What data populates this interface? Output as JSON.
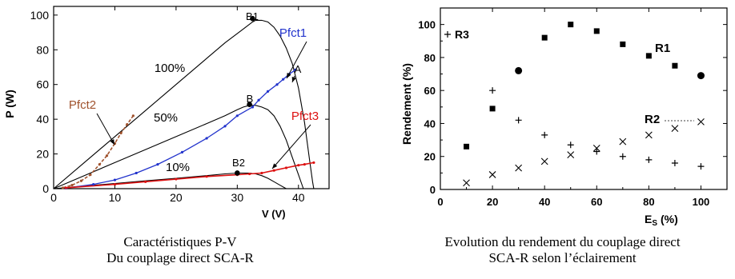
{
  "colors": {
    "black": "#000000",
    "pfct1": "#2233cc",
    "pfct2": "#a0522d",
    "pfct3": "#dd1111"
  },
  "left": {
    "caption_line1": "Caractéristiques P-V",
    "caption_line2": "Du couplage direct SCA-R"
  },
  "right": {
    "caption_line1": "Evolution du rendement du couplage direct",
    "caption_line2": "SCA-R selon l’éclairement"
  },
  "chart_data": [
    {
      "type": "line",
      "xlabel": "V (V)",
      "ylabel": "P (W)",
      "xlim": [
        0,
        45
      ],
      "ylim": [
        0,
        105
      ],
      "xticks": [
        "0",
        "10",
        "20",
        "30",
        "40"
      ],
      "yticks": [
        "0",
        "20",
        "40",
        "60",
        "80",
        "100"
      ],
      "series": [
        {
          "name": "100%",
          "points": [
            [
              0,
              0
            ],
            [
              5,
              15
            ],
            [
              10,
              30
            ],
            [
              15,
              45
            ],
            [
              20,
              60
            ],
            [
              25,
              75
            ],
            [
              28,
              84
            ],
            [
              31,
              92
            ],
            [
              32.5,
              96
            ],
            [
              33,
              97
            ],
            [
              34,
              97
            ],
            [
              35,
              96
            ],
            [
              36,
              93
            ],
            [
              37,
              88
            ],
            [
              38,
              81
            ],
            [
              39,
              72
            ],
            [
              40,
              58
            ],
            [
              41,
              38
            ],
            [
              41.8,
              17
            ],
            [
              42.3,
              4
            ],
            [
              42.5,
              0
            ]
          ]
        },
        {
          "name": "50%",
          "points": [
            [
              0,
              0
            ],
            [
              5,
              7.5
            ],
            [
              10,
              15
            ],
            [
              15,
              22.5
            ],
            [
              20,
              30
            ],
            [
              25,
              37.5
            ],
            [
              28,
              42
            ],
            [
              30,
              45.5
            ],
            [
              31,
              47
            ],
            [
              32,
              48
            ],
            [
              33,
              48
            ],
            [
              34,
              47
            ],
            [
              35,
              45.5
            ],
            [
              36,
              42
            ],
            [
              37,
              36
            ],
            [
              38,
              28
            ],
            [
              39,
              18
            ],
            [
              40,
              8
            ],
            [
              40.5,
              3
            ],
            [
              40.8,
              0
            ]
          ]
        },
        {
          "name": "10%",
          "points": [
            [
              0,
              0
            ],
            [
              5,
              1.5
            ],
            [
              10,
              3
            ],
            [
              15,
              4.5
            ],
            [
              20,
              6
            ],
            [
              25,
              7.5
            ],
            [
              28,
              8.5
            ],
            [
              30,
              9
            ],
            [
              32,
              9
            ],
            [
              33,
              8.5
            ],
            [
              34,
              7.5
            ],
            [
              35,
              6
            ],
            [
              36,
              4
            ],
            [
              37,
              2
            ],
            [
              38,
              0
            ]
          ]
        },
        {
          "name": "Pfct1",
          "points": [
            [
              2,
              0.3
            ],
            [
              6.5,
              2.5
            ],
            [
              10,
              5
            ],
            [
              13.5,
              9
            ],
            [
              17,
              14
            ],
            [
              21,
              21
            ],
            [
              25,
              29
            ],
            [
              28,
              36
            ],
            [
              30,
              42
            ],
            [
              32.5,
              47
            ],
            [
              33.5,
              51
            ],
            [
              35,
              56
            ],
            [
              36.5,
              60
            ],
            [
              37.5,
              63
            ],
            [
              38.5,
              66
            ],
            [
              39.5,
              68.5
            ]
          ]
        },
        {
          "name": "Pfct2",
          "points": [
            [
              1.5,
              0.5
            ],
            [
              3,
              2
            ],
            [
              4.5,
              4.5
            ],
            [
              6,
              8
            ],
            [
              7.5,
              14
            ],
            [
              8.7,
              19
            ],
            [
              10,
              26
            ],
            [
              11,
              32
            ],
            [
              12,
              37
            ],
            [
              13,
              42
            ]
          ]
        },
        {
          "name": "Pfct3",
          "points": [
            [
              2,
              0.5
            ],
            [
              10,
              2.5
            ],
            [
              15,
              4
            ],
            [
              20,
              5.5
            ],
            [
              25,
              7
            ],
            [
              30,
              8
            ],
            [
              32,
              8.5
            ],
            [
              34,
              9
            ],
            [
              36,
              10.5
            ],
            [
              38,
              12
            ],
            [
              40,
              13.5
            ],
            [
              41,
              14
            ],
            [
              42.5,
              15
            ]
          ]
        }
      ],
      "points_labeled": [
        {
          "label": "B1",
          "x": 32.5,
          "y": 98
        },
        {
          "label": "B",
          "x": 32,
          "y": 48.5
        },
        {
          "label": "B2",
          "x": 30,
          "y": 9
        },
        {
          "label": "A",
          "x": 38.5,
          "y": 66
        }
      ],
      "annotations": [
        "100%",
        "50%",
        "10%",
        "Pfct1",
        "Pfct2",
        "Pfct3",
        "B1",
        "B",
        "B2",
        "A"
      ]
    },
    {
      "type": "scatter",
      "xlabel": "E",
      "xlabel_sub": "S",
      "xlabel_unit": "(%)",
      "ylabel": "Rendement (%)",
      "xlim": [
        0,
        110
      ],
      "ylim": [
        0,
        110
      ],
      "xticks": [
        "0",
        "20",
        "40",
        "60",
        "80",
        "100"
      ],
      "yticks": [
        "0",
        "20",
        "40",
        "60",
        "80",
        "100"
      ],
      "series": [
        {
          "name": "R1",
          "marker": "square",
          "x": [
            10,
            20,
            30,
            40,
            50,
            60,
            70,
            80,
            90,
            100
          ],
          "y": [
            26,
            49,
            72,
            92,
            100,
            96,
            88,
            81,
            75,
            69
          ]
        },
        {
          "name": "R2",
          "marker": "x",
          "x": [
            10,
            20,
            30,
            40,
            50,
            60,
            70,
            80,
            90,
            100
          ],
          "y": [
            4,
            9,
            13,
            17,
            21,
            25,
            29,
            33,
            37,
            41
          ]
        },
        {
          "name": "R3",
          "marker": "plus",
          "x": [
            20,
            30,
            40,
            50,
            60,
            70,
            80,
            90,
            100
          ],
          "y": [
            60,
            42,
            33,
            27,
            23,
            20,
            18,
            16,
            14
          ]
        }
      ],
      "legend_marker_label": "R3",
      "annotations": [
        "R1",
        "R2"
      ]
    }
  ]
}
